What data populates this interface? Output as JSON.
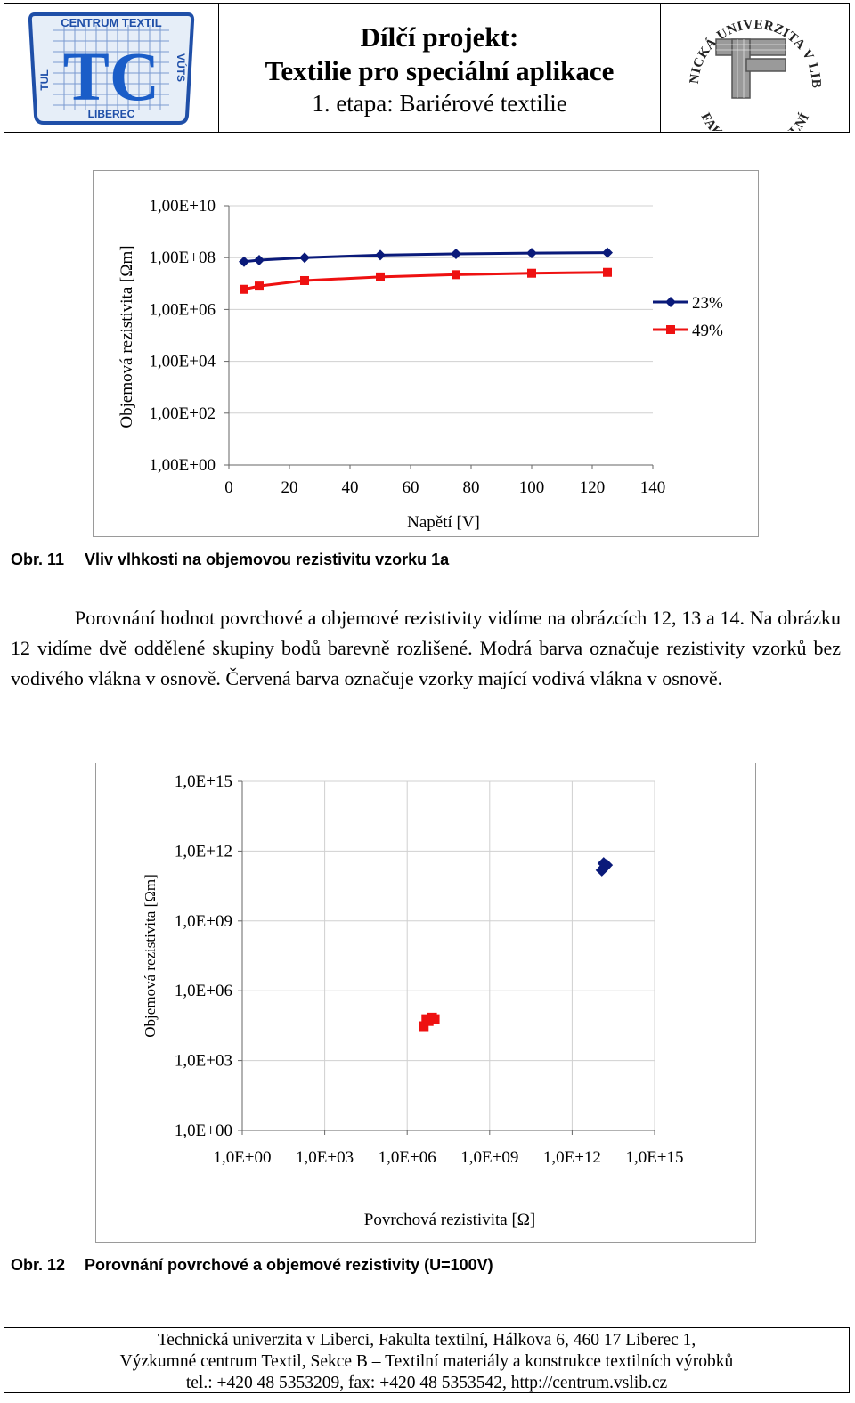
{
  "header": {
    "left_logo": {
      "top_text": "CENTRUM TEXTIL",
      "left_text": "TUL",
      "right_text": "VÚTS",
      "bottom_text": "LIBEREC",
      "monogram": "TC"
    },
    "title_line1": "Dílčí projekt:",
    "title_line2": "Textilie pro speciální aplikace",
    "title_line3": "1. etapa: Bariérové textilie",
    "right_logo": {
      "ring_top": "TECHNICKÁ UNIVERZITA V LIBERCI",
      "ring_bottom": "FAKULTA TEXTILNÍ",
      "monogram": "TF"
    }
  },
  "figure11": {
    "caption_number": "Obr. 11",
    "caption_text": "Vliv vlhkosti na objemovou rezistivitu vzorku 1a"
  },
  "paragraph": "Porovnání hodnot povrchové a objemové rezistivity vidíme na obrázcích 12, 13 a 14. Na obrázku 12 vidíme dvě oddělené skupiny bodů barevně rozlišené. Modrá barva označuje rezistivity vzorků bez vodivého vlákna v osnově. Červená barva označuje vzorky mající vodivá vlákna v osnově.",
  "figure12": {
    "caption_number": "Obr. 12",
    "caption_text": "Porovnání povrchové a objemové rezistivity (U=100V)"
  },
  "footer": {
    "line1": "Technická univerzita v Liberci, Fakulta textilní, Hálkova 6, 460 17 Liberec 1,",
    "line2": "Výzkumné centrum Textil, Sekce B – Textilní materiály a konstrukce textilních výrobků",
    "line3": "tel.: +420 48 5353209, fax: +420 48 5353542, http://centrum.vslib.cz"
  },
  "colors": {
    "series_blue": "#0a1a7a",
    "series_red": "#ee1111",
    "gridline": "#d0d0d0",
    "frame": "#9a9a9a"
  },
  "chart_data": [
    {
      "type": "line",
      "xlabel": "Napětí [V]",
      "ylabel": "Objemová rezistivita [Ωm]",
      "x_ticks": [
        "0",
        "20",
        "40",
        "60",
        "80",
        "100",
        "120",
        "140"
      ],
      "y_ticks": [
        "1,00E+00",
        "1,00E+02",
        "1,00E+04",
        "1,00E+06",
        "1,00E+08",
        "1,00E+10"
      ],
      "xlim": [
        0,
        140
      ],
      "ylim": [
        1,
        10000000000
      ],
      "y_scale": "log",
      "grid": "horizontal",
      "legend": "right",
      "series": [
        {
          "name": "23%",
          "color": "#0a1a7a",
          "marker": "diamond",
          "x": [
            5,
            10,
            25,
            50,
            75,
            100,
            125
          ],
          "y": [
            70000000,
            80000000,
            100000000,
            125000000,
            140000000,
            150000000,
            155000000
          ]
        },
        {
          "name": "49%",
          "color": "#ee1111",
          "marker": "square",
          "x": [
            5,
            10,
            25,
            50,
            75,
            100,
            125
          ],
          "y": [
            6000000,
            8000000,
            13000000,
            18000000,
            22000000,
            25000000,
            27000000
          ]
        }
      ]
    },
    {
      "type": "scatter",
      "xlabel": "Povrchová rezistivita [Ω]",
      "ylabel": "Objemová rezistivita [Ωm]",
      "x_ticks": [
        "1,0E+00",
        "1,0E+03",
        "1,0E+06",
        "1,0E+09",
        "1,0E+12",
        "1,0E+15"
      ],
      "y_ticks": [
        "1,0E+00",
        "1,0E+03",
        "1,0E+06",
        "1,0E+09",
        "1,0E+12",
        "1,0E+15"
      ],
      "xlim": [
        1,
        1000000000000000
      ],
      "ylim": [
        1,
        1000000000000000
      ],
      "x_scale": "log",
      "y_scale": "log",
      "grid": "both",
      "series": [
        {
          "color": "#0a1a7a",
          "marker": "diamond",
          "x": [
            12000000000000,
            14000000000000,
            15000000000000,
            18000000000000
          ],
          "y": [
            150000000000,
            300000000000,
            200000000000,
            250000000000
          ]
        },
        {
          "color": "#ee1111",
          "marker": "square",
          "x": [
            4000000,
            5000000,
            6000000,
            8000000,
            10000000
          ],
          "y": [
            30000,
            60000,
            50000,
            70000,
            60000
          ]
        }
      ]
    }
  ]
}
